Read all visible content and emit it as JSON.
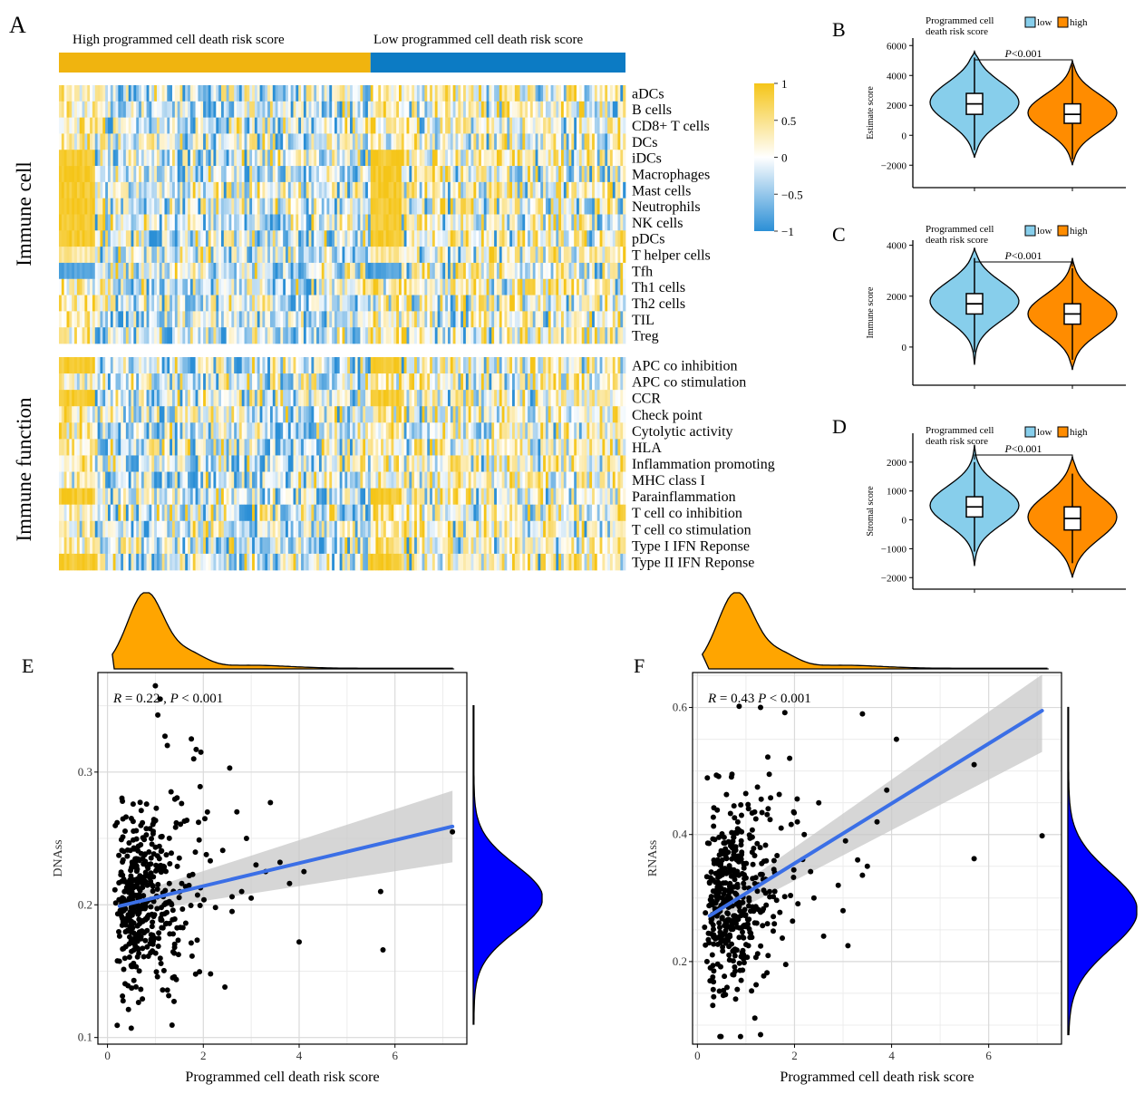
{
  "figure": {
    "panel_labels": [
      "A",
      "B",
      "C",
      "D",
      "E",
      "F"
    ],
    "colors": {
      "heat_low": "#2b8fd6",
      "heat_mid": "#ffffff",
      "heat_high": "#f5c518",
      "high_group_bar": "#f0b40f",
      "low_group_bar": "#0c7bc4",
      "violin_low": "#87ceeb",
      "violin_high": "#ff8c00",
      "density_top": "#ffa500",
      "density_side": "#0000ff",
      "regression_line": "#3b6fe6",
      "ci_band": "#c8c8c8",
      "point": "#000000"
    }
  },
  "chart_data": [
    {
      "type": "heatmap",
      "panel": "A",
      "group_labels": [
        "High programmed cell death risk score",
        "Low programmed cell death risk score"
      ],
      "group_split_fraction": 0.55,
      "sections": [
        {
          "title": "Immune cell",
          "rows": [
            "aDCs",
            "B cells",
            "CD8+ T cells",
            "DCs",
            "iDCs",
            "Macrophages",
            "Mast cells",
            "Neutrophils",
            "NK cells",
            "pDCs",
            "T helper cells",
            "Tfh",
            "Th1 cells",
            "Th2 cells",
            "TIL",
            "Treg"
          ]
        },
        {
          "title": "Immune function",
          "rows": [
            "APC co inhibition",
            "APC co stimulation",
            "CCR",
            "Check point",
            "Cytolytic activity",
            "HLA",
            "Inflammation promoting",
            "MHC class I",
            "Parainflammation",
            "T cell co inhibition",
            "T cell co stimulation",
            "Type I IFN Reponse",
            "Type II IFN Reponse"
          ]
        }
      ],
      "color_scale": {
        "ticks": [
          "1",
          "0.5",
          "0",
          "−0.5",
          "−1"
        ],
        "min": -1,
        "max": 1
      }
    },
    {
      "type": "violin",
      "panel": "B",
      "legend_title": "Programmed cell\ndeath risk score",
      "legend": [
        "low",
        "high"
      ],
      "ylabel": "Estimate score",
      "yticks": [
        -2000,
        0,
        2000,
        4000,
        6000
      ],
      "ytick_labels": [
        "−2000",
        "0",
        "2000",
        "4000",
        "6000"
      ],
      "ylim": [
        -3500,
        6500
      ],
      "pvalue": "<0.001",
      "groups": [
        {
          "name": "low",
          "median": 2100,
          "q1": 1400,
          "q3": 2800,
          "whisk_lo": -1000,
          "whisk_hi": 5200,
          "min": -1500,
          "max": 5600,
          "mode": 2200
        },
        {
          "name": "high",
          "median": 1400,
          "q1": 800,
          "q3": 2100,
          "whisk_lo": -1600,
          "whisk_hi": 4700,
          "min": -2000,
          "max": 5000,
          "mode": 1500
        }
      ]
    },
    {
      "type": "violin",
      "panel": "C",
      "legend_title": "Programmed cell\ndeath risk score",
      "legend": [
        "low",
        "high"
      ],
      "ylabel": "Immune score",
      "yticks": [
        0,
        2000,
        4000
      ],
      "ytick_labels": [
        "0",
        "2000",
        "4000"
      ],
      "ylim": [
        -1500,
        4200
      ],
      "pvalue": "<0.001",
      "groups": [
        {
          "name": "low",
          "median": 1700,
          "q1": 1300,
          "q3": 2100,
          "whisk_lo": -200,
          "whisk_hi": 3500,
          "min": -700,
          "max": 3900,
          "mode": 1800
        },
        {
          "name": "high",
          "median": 1300,
          "q1": 900,
          "q3": 1700,
          "whisk_lo": -500,
          "whisk_hi": 3100,
          "min": -900,
          "max": 3500,
          "mode": 1300
        }
      ]
    },
    {
      "type": "violin",
      "panel": "D",
      "legend_title": "Programmed cell\ndeath risk score",
      "legend": [
        "low",
        "high"
      ],
      "ylabel": "Stromal score",
      "yticks": [
        -2000,
        -1000,
        0,
        1000,
        2000
      ],
      "ytick_labels": [
        "−2000",
        "−1000",
        "0",
        "1000",
        "2000"
      ],
      "ylim": [
        -2400,
        3000
      ],
      "pvalue": "<0.001",
      "groups": [
        {
          "name": "low",
          "median": 450,
          "q1": 100,
          "q3": 800,
          "whisk_lo": -1100,
          "whisk_hi": 2000,
          "min": -1600,
          "max": 2600,
          "mode": 500
        },
        {
          "name": "high",
          "median": 50,
          "q1": -350,
          "q3": 450,
          "whisk_lo": -1500,
          "whisk_hi": 1600,
          "min": -2000,
          "max": 2200,
          "mode": 100
        }
      ]
    },
    {
      "type": "scatter",
      "panel": "E",
      "annotation": "R = 0.22 , P < 0.001",
      "annotation_R": "R",
      "annotation_R_value": "= 0.22 ,",
      "annotation_P": "P",
      "annotation_P_value": "< 0.001",
      "xlabel": "Programmed cell death risk score",
      "ylabel": "DNAss",
      "xlim": [
        -0.2,
        7.5
      ],
      "ylim": [
        0.095,
        0.375
      ],
      "xticks": [
        0,
        2,
        4,
        6
      ],
      "yticks": [
        0.1,
        0.2,
        0.3
      ],
      "xtick_labels": [
        "0",
        "2",
        "4",
        "6"
      ],
      "ytick_labels": [
        "0.1",
        "0.2",
        "0.3"
      ],
      "fit": {
        "x0": 0.25,
        "y0": 0.199,
        "x1": 7.2,
        "y1": 0.259
      },
      "ci": {
        "lo0": 0.193,
        "hi0": 0.205,
        "lo1": 0.232,
        "hi1": 0.286
      },
      "cluster": {
        "n": 440,
        "x_mean": 0.9,
        "y_mean": 0.205,
        "y_sd": 0.032
      },
      "outliers": [
        [
          1.0,
          0.365
        ],
        [
          1.1,
          0.355
        ],
        [
          1.05,
          0.343
        ],
        [
          1.2,
          0.327
        ],
        [
          1.25,
          0.32
        ],
        [
          1.75,
          0.325
        ],
        [
          1.85,
          0.317
        ],
        [
          1.95,
          0.315
        ],
        [
          1.8,
          0.31
        ],
        [
          2.55,
          0.303
        ],
        [
          3.4,
          0.277
        ],
        [
          2.7,
          0.27
        ],
        [
          2.9,
          0.25
        ],
        [
          3.1,
          0.23
        ],
        [
          3.6,
          0.232
        ],
        [
          4.1,
          0.225
        ],
        [
          3.8,
          0.216
        ],
        [
          4.0,
          0.172
        ],
        [
          5.7,
          0.21
        ],
        [
          5.75,
          0.166
        ],
        [
          7.2,
          0.255
        ],
        [
          2.45,
          0.138
        ],
        [
          3.0,
          0.205
        ],
        [
          2.8,
          0.21
        ],
        [
          3.3,
          0.225
        ],
        [
          2.6,
          0.195
        ]
      ]
    },
    {
      "type": "scatter",
      "panel": "F",
      "annotation": "R = 0.43  P < 0.001",
      "annotation_R": "R",
      "annotation_R_value": "= 0.43",
      "annotation_P": "P",
      "annotation_P_value": "< 0.001",
      "xlabel": "Programmed cell death risk score",
      "ylabel": "RNAss",
      "xlim": [
        -0.1,
        7.5
      ],
      "ylim": [
        0.07,
        0.655
      ],
      "xticks": [
        0,
        2,
        4,
        6
      ],
      "yticks": [
        0.2,
        0.4,
        0.6
      ],
      "xtick_labels": [
        "0",
        "2",
        "4",
        "6"
      ],
      "ytick_labels": [
        "0.2",
        "0.4",
        "0.6"
      ],
      "fit": {
        "x0": 0.25,
        "y0": 0.272,
        "x1": 7.1,
        "y1": 0.595
      },
      "ci": {
        "lo0": 0.258,
        "hi0": 0.286,
        "lo1": 0.53,
        "hi1": 0.652
      },
      "cluster": {
        "n": 440,
        "x_mean": 0.9,
        "y_mean": 0.305,
        "y_sd": 0.075
      },
      "outliers": [
        [
          1.3,
          0.6
        ],
        [
          1.8,
          0.592
        ],
        [
          3.4,
          0.59
        ],
        [
          4.1,
          0.55
        ],
        [
          5.7,
          0.51
        ],
        [
          3.9,
          0.47
        ],
        [
          3.7,
          0.42
        ],
        [
          7.1,
          0.398
        ],
        [
          5.7,
          0.362
        ],
        [
          3.4,
          0.336
        ],
        [
          3.1,
          0.225
        ],
        [
          2.9,
          0.32
        ],
        [
          2.6,
          0.24
        ],
        [
          3.0,
          0.28
        ],
        [
          2.2,
          0.4
        ],
        [
          2.5,
          0.45
        ],
        [
          3.3,
          0.36
        ],
        [
          1.9,
          0.52
        ],
        [
          1.3,
          0.085
        ],
        [
          3.05,
          0.39
        ],
        [
          2.4,
          0.3
        ],
        [
          3.5,
          0.35
        ]
      ]
    }
  ]
}
